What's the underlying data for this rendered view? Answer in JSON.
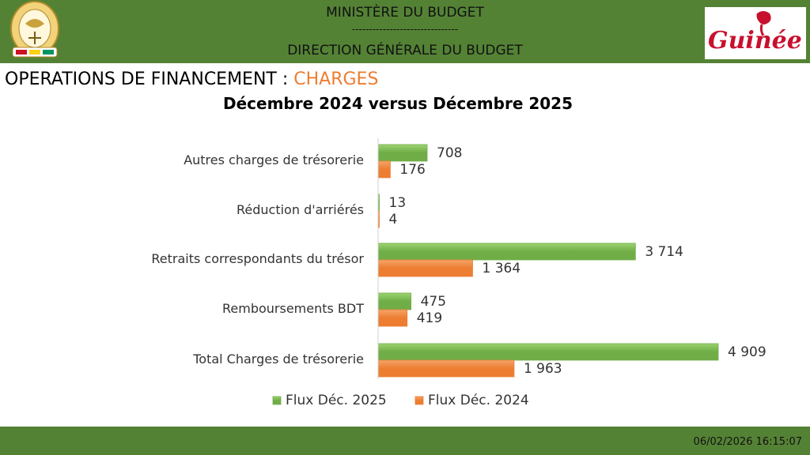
{
  "header": {
    "ministry": "MINISTÈRE DU BUDGET",
    "separator": "-------------------------------",
    "direction": "DIRECTION GÉNÉRALE DU BUDGET",
    "logo_text": "Guinée"
  },
  "slide": {
    "title_main": "OPERATIONS DE FINANCEMENT : ",
    "title_accent": "CHARGES",
    "subtitle": "Décembre 2024 versus Décembre 2025"
  },
  "footer": {
    "timestamp": "06/02/2026 16:15:07"
  },
  "colors": {
    "green": "#70ad47",
    "orange": "#ed7d31",
    "band": "#548235"
  },
  "chart_data": {
    "type": "bar",
    "orientation": "horizontal",
    "categories": [
      "Autres charges de trésorerie",
      "Réduction d'arriérés",
      "Retraits correspondants du trésor",
      "Remboursements BDT",
      "Total Charges de trésorerie"
    ],
    "series": [
      {
        "name": "Flux Déc. 2025",
        "color": "#70ad47",
        "values": [
          708,
          13,
          3714,
          475,
          4909
        ],
        "labels": [
          "708",
          "13",
          "3 714",
          "475",
          "4 909"
        ]
      },
      {
        "name": "Flux Déc. 2024",
        "color": "#ed7d31",
        "values": [
          176,
          4,
          1364,
          419,
          1963
        ],
        "labels": [
          "176",
          "4",
          "1 364",
          "419",
          "1 963"
        ]
      }
    ],
    "xlim": [
      0,
      4909
    ],
    "grid": false,
    "legend": "bottom"
  }
}
